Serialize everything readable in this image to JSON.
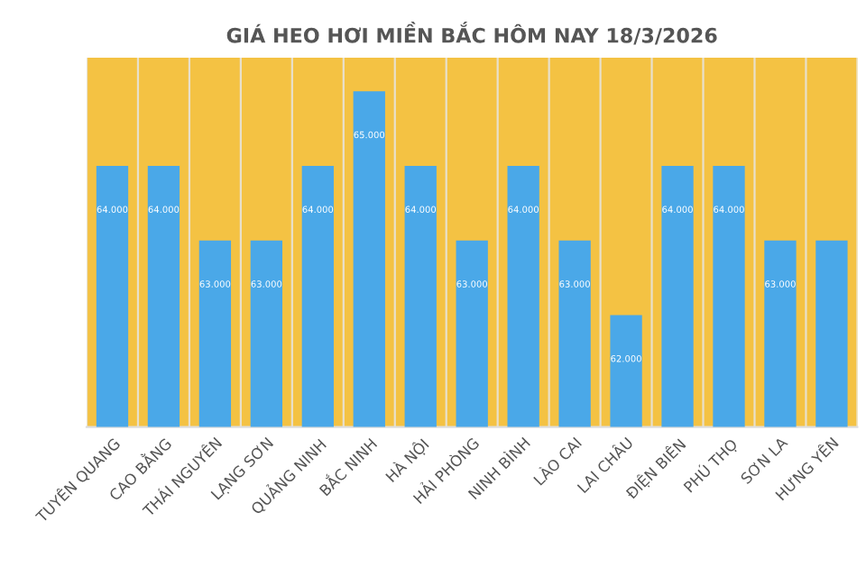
{
  "chart_data": {
    "type": "bar",
    "title": "GIÁ HEO HƠI MIỀN BẮC HÔM NAY 18/3/2026",
    "categories": [
      "TUYÊN QUANG",
      "CAO BẰNG",
      "THÁI NGUYÊN",
      "LẠNG SƠN",
      "QUẢNG NINH",
      "BẮC NINH",
      "HÀ NỘI",
      "HẢI PHÒNG",
      "NINH BÌNH",
      "LÀO CAI",
      "LAI CHÂU",
      "ĐIỆN BIÊN",
      "PHÚ THỌ",
      "SƠN LA",
      "HƯNG YÊN"
    ],
    "values": [
      64000,
      64000,
      63000,
      63000,
      64000,
      65000,
      64000,
      63000,
      64000,
      63000,
      62000,
      64000,
      64000,
      63000,
      63000
    ],
    "value_labels": [
      "64.000",
      "64.000",
      "63.000",
      "63.000",
      "64.000",
      "65.000",
      "64.000",
      "63.000",
      "64.000",
      "63.000",
      "62.000",
      "64.000",
      "64.000",
      "63.000",
      null
    ],
    "color": "#4aa8e8",
    "ylim": [
      60500,
      65450
    ],
    "tick_labels": "x",
    "grid": "x",
    "legend": false
  }
}
